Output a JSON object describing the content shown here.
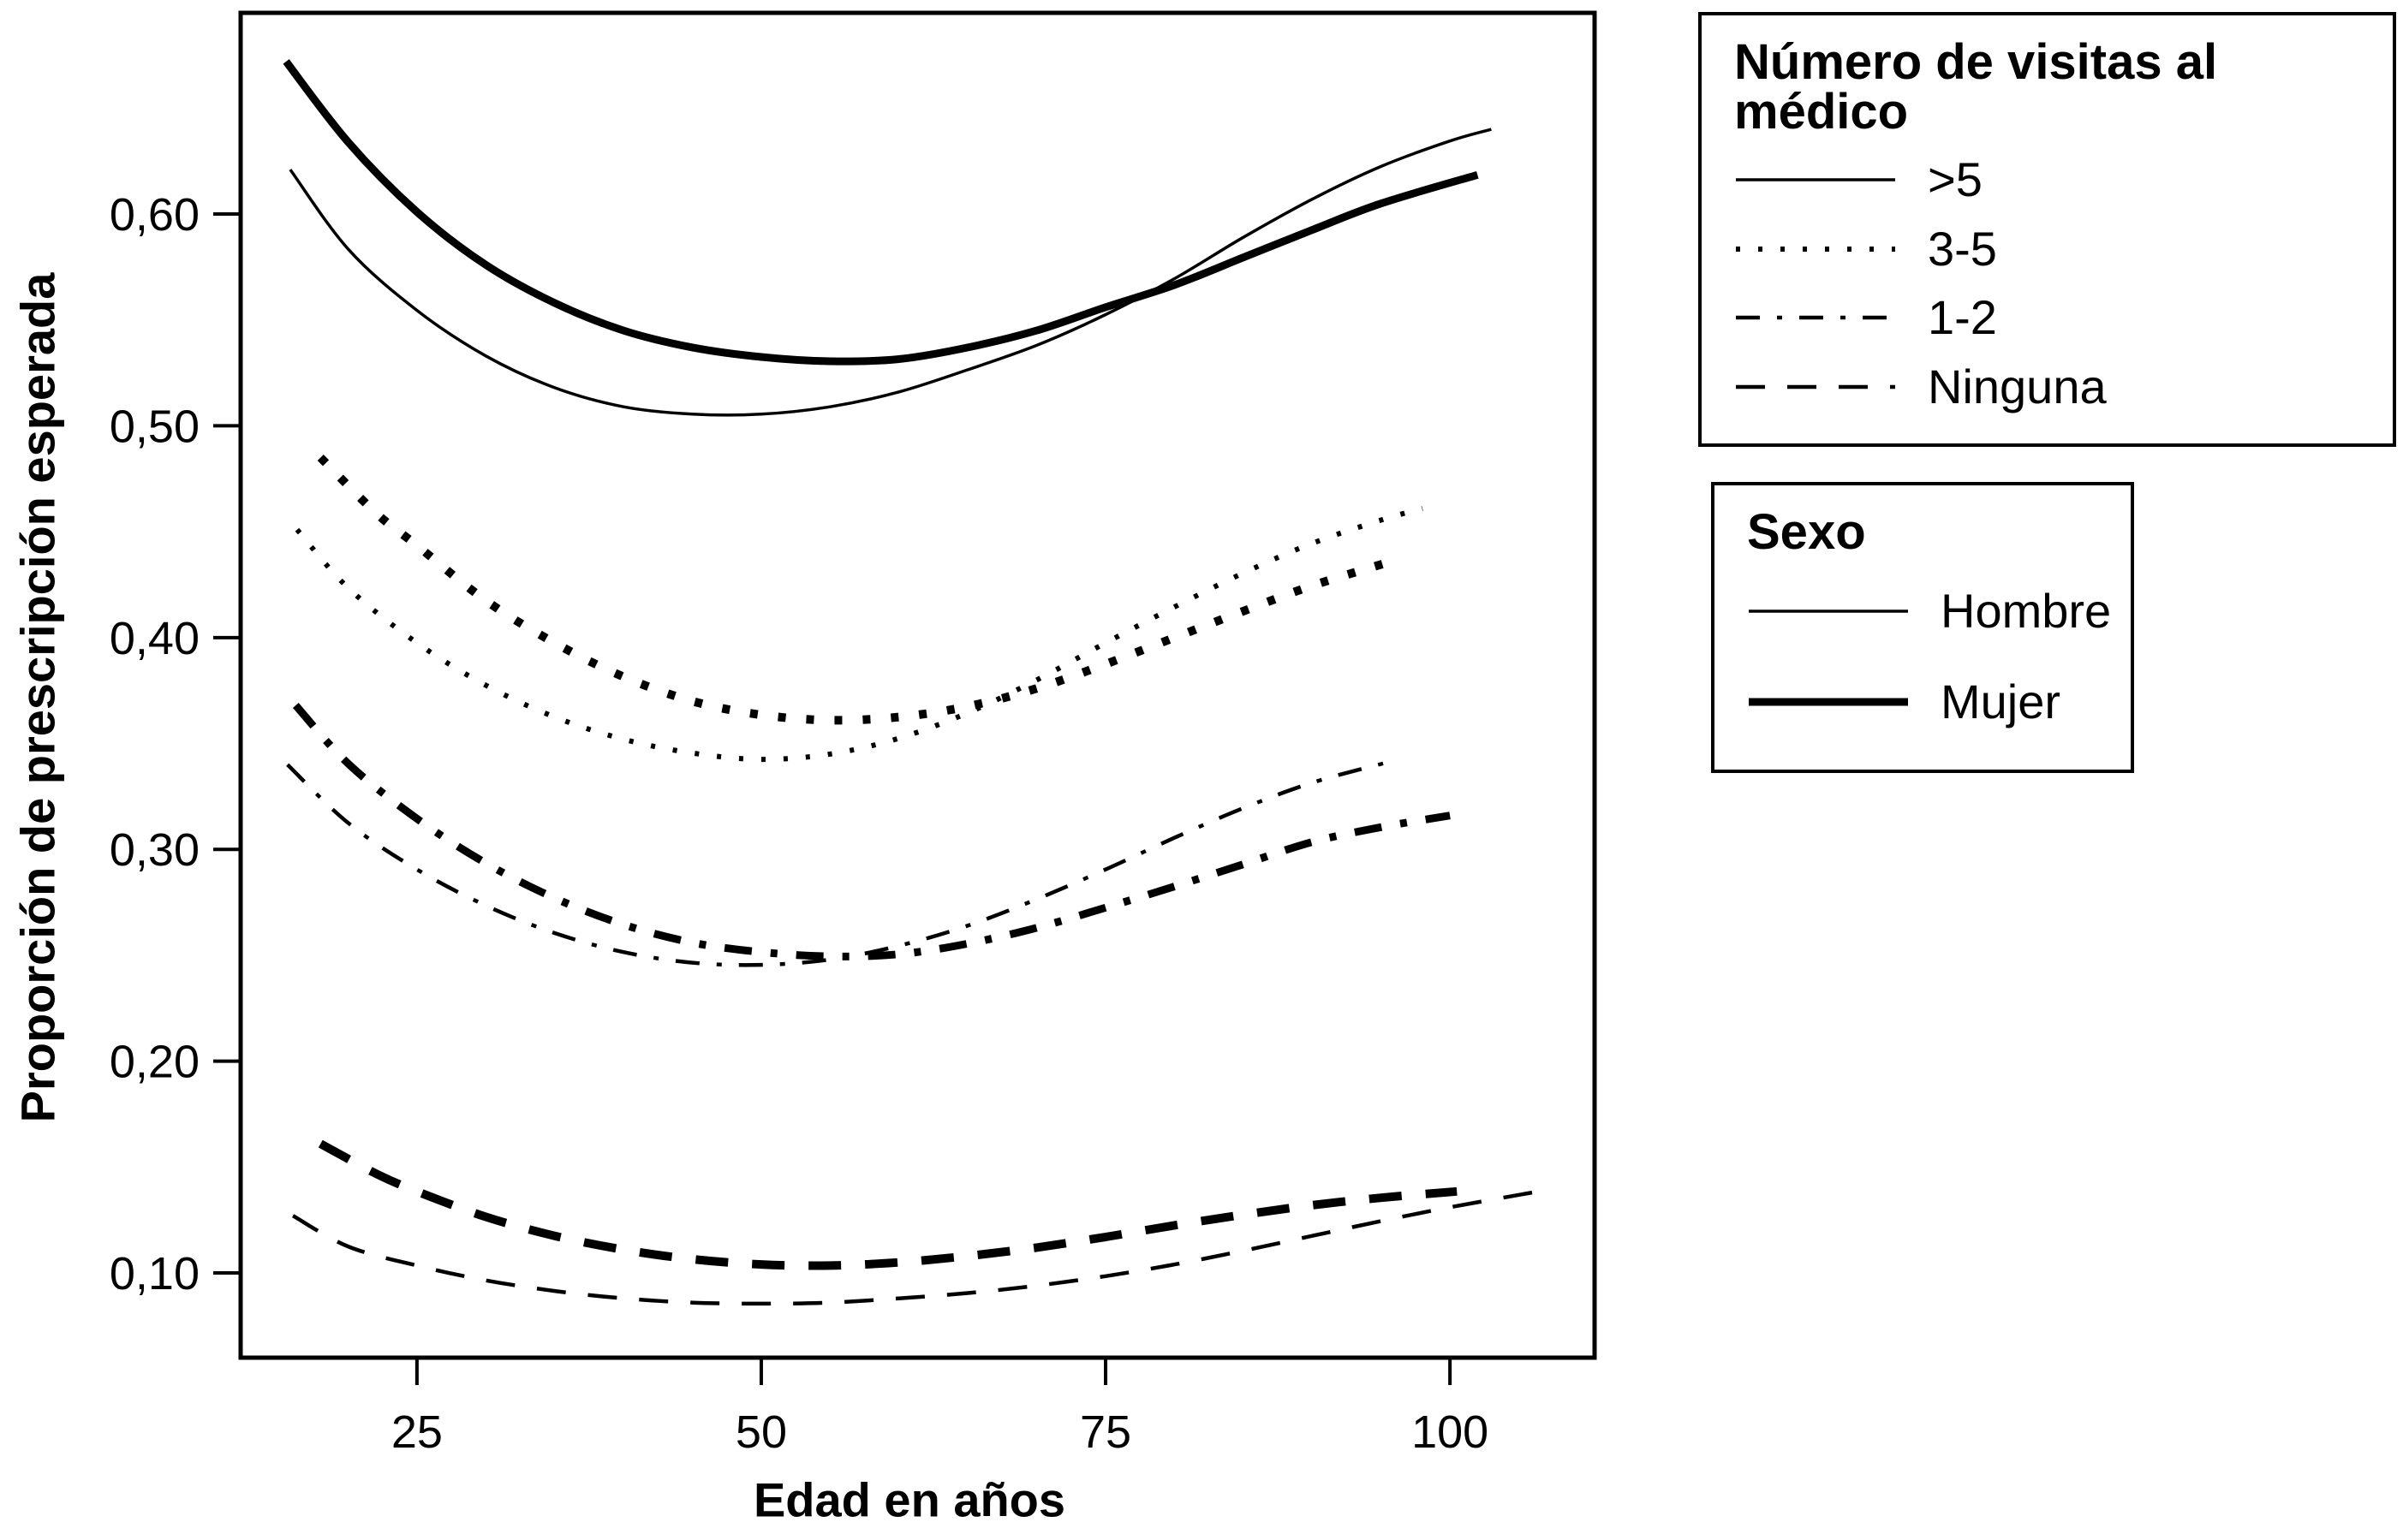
{
  "canvas": {
    "background": "#ffffff",
    "line_color": "#000000"
  },
  "chart_data": {
    "type": "line",
    "title": "",
    "xlabel": "Edad en años",
    "ylabel": "Proporción de prescripción esperada",
    "xlim": [
      12.2,
      110.5
    ],
    "ylim": [
      0.06,
      0.695
    ],
    "grid": false,
    "x_ticks": [
      {
        "value": 25,
        "label": "25"
      },
      {
        "value": 50,
        "label": "50"
      },
      {
        "value": 75,
        "label": "75"
      },
      {
        "value": 100,
        "label": "100"
      }
    ],
    "y_ticks": [
      {
        "value": 0.1,
        "label": "0,10"
      },
      {
        "value": 0.2,
        "label": "0,20"
      },
      {
        "value": 0.3,
        "label": "0,30"
      },
      {
        "value": 0.4,
        "label": "0,40"
      },
      {
        "value": 0.5,
        "label": "0,50"
      },
      {
        "value": 0.6,
        "label": "0,60"
      }
    ],
    "legends": [
      {
        "title": "Número de visitas al médico",
        "position": "top-right",
        "items": [
          {
            "label": ">5",
            "pattern": "solid",
            "weight": "thin"
          },
          {
            "label": "3-5",
            "pattern": "dotted",
            "weight": "thin"
          },
          {
            "label": "1-2",
            "pattern": "dashdot",
            "weight": "thin"
          },
          {
            "label": "Ninguna",
            "pattern": "dashed",
            "weight": "thin"
          }
        ]
      },
      {
        "title": "Sexo",
        "position": "right",
        "items": [
          {
            "label": "Hombre",
            "pattern": "solid",
            "weight": "thin"
          },
          {
            "label": "Mujer",
            "pattern": "solid",
            "weight": "thick"
          }
        ]
      }
    ],
    "series": [
      {
        "name": "Mujer, >5 visitas",
        "sex": "Mujer",
        "visits": ">5",
        "pattern": "solid",
        "weight": "thick",
        "points": [
          [
            15.5,
            0.672
          ],
          [
            20,
            0.634
          ],
          [
            25,
            0.601
          ],
          [
            30,
            0.576
          ],
          [
            35,
            0.558
          ],
          [
            40,
            0.545
          ],
          [
            45,
            0.537
          ],
          [
            50,
            0.5325
          ],
          [
            55,
            0.5305
          ],
          [
            60,
            0.5315
          ],
          [
            65,
            0.537
          ],
          [
            70,
            0.545
          ],
          [
            75,
            0.556
          ],
          [
            80,
            0.5665
          ],
          [
            85,
            0.5795
          ],
          [
            90,
            0.5925
          ],
          [
            95,
            0.605
          ],
          [
            102,
            0.6185
          ]
        ]
      },
      {
        "name": "Hombre, >5 visitas",
        "sex": "Hombre",
        "visits": ">5",
        "pattern": "solid",
        "weight": "thin",
        "points": [
          [
            15.8,
            0.621
          ],
          [
            20,
            0.5835
          ],
          [
            25,
            0.5545
          ],
          [
            30,
            0.533
          ],
          [
            35,
            0.518
          ],
          [
            40,
            0.509
          ],
          [
            45,
            0.5055
          ],
          [
            50,
            0.5055
          ],
          [
            55,
            0.509
          ],
          [
            60,
            0.516
          ],
          [
            65,
            0.5265
          ],
          [
            70,
            0.538
          ],
          [
            75,
            0.5525
          ],
          [
            80,
            0.5695
          ],
          [
            85,
            0.589
          ],
          [
            90,
            0.607
          ],
          [
            95,
            0.6225
          ],
          [
            100,
            0.6345
          ],
          [
            103,
            0.64
          ]
        ]
      },
      {
        "name": "Mujer, 3-5 visitas",
        "sex": "Mujer",
        "visits": "3-5",
        "pattern": "dotted",
        "weight": "thick",
        "points": [
          [
            18,
            0.485
          ],
          [
            22,
            0.459
          ],
          [
            25,
            0.4435
          ],
          [
            30,
            0.4175
          ],
          [
            35,
            0.3975
          ],
          [
            40,
            0.3815
          ],
          [
            45,
            0.37
          ],
          [
            50,
            0.3635
          ],
          [
            55,
            0.361
          ],
          [
            60,
            0.3625
          ],
          [
            65,
            0.3675
          ],
          [
            70,
            0.376
          ],
          [
            75,
            0.3875
          ],
          [
            80,
            0.4
          ],
          [
            85,
            0.4125
          ],
          [
            90,
            0.4245
          ],
          [
            96,
            0.4365
          ]
        ]
      },
      {
        "name": "Hombre, 3-5 visitas",
        "sex": "Hombre",
        "visits": "3-5",
        "pattern": "dotted",
        "weight": "thin",
        "points": [
          [
            16.3,
            0.451
          ],
          [
            20,
            0.4235
          ],
          [
            25,
            0.3975
          ],
          [
            30,
            0.3775
          ],
          [
            35,
            0.3625
          ],
          [
            40,
            0.352
          ],
          [
            45,
            0.3455
          ],
          [
            50,
            0.3425
          ],
          [
            55,
            0.345
          ],
          [
            60,
            0.3525
          ],
          [
            65,
            0.3645
          ],
          [
            70,
            0.38
          ],
          [
            75,
            0.3975
          ],
          [
            80,
            0.4145
          ],
          [
            85,
            0.4305
          ],
          [
            90,
            0.4445
          ],
          [
            95,
            0.4555
          ],
          [
            98,
            0.461
          ]
        ]
      },
      {
        "name": "Mujer, 1-2 visitas",
        "sex": "Mujer",
        "visits": "1-2",
        "pattern": "dashdot",
        "weight": "thick",
        "points": [
          [
            16.2,
            0.368
          ],
          [
            20,
            0.3405
          ],
          [
            25,
            0.3145
          ],
          [
            30,
            0.2935
          ],
          [
            35,
            0.277
          ],
          [
            40,
            0.2645
          ],
          [
            45,
            0.256
          ],
          [
            50,
            0.2515
          ],
          [
            55,
            0.2495
          ],
          [
            60,
            0.2505
          ],
          [
            65,
            0.2555
          ],
          [
            70,
            0.263
          ],
          [
            75,
            0.2725
          ],
          [
            80,
            0.2825
          ],
          [
            85,
            0.293
          ],
          [
            90,
            0.3035
          ],
          [
            95,
            0.3105
          ],
          [
            100,
            0.316
          ]
        ]
      },
      {
        "name": "Hombre, 1-2 visitas",
        "sex": "Hombre",
        "visits": "1-2",
        "pattern": "dashdot",
        "weight": "thin",
        "points": [
          [
            15.6,
            0.34
          ],
          [
            20,
            0.3125
          ],
          [
            25,
            0.2905
          ],
          [
            30,
            0.2735
          ],
          [
            35,
            0.2605
          ],
          [
            40,
            0.2515
          ],
          [
            45,
            0.2465
          ],
          [
            50,
            0.2455
          ],
          [
            55,
            0.248
          ],
          [
            60,
            0.2545
          ],
          [
            65,
            0.264
          ],
          [
            70,
            0.2765
          ],
          [
            75,
            0.2905
          ],
          [
            80,
            0.3055
          ],
          [
            85,
            0.3195
          ],
          [
            90,
            0.3315
          ],
          [
            95.4,
            0.341
          ]
        ]
      },
      {
        "name": "Mujer, ninguna visita",
        "sex": "Mujer",
        "visits": "Ninguna",
        "pattern": "dashed",
        "weight": "thick",
        "points": [
          [
            18,
            0.161
          ],
          [
            22,
            0.147
          ],
          [
            25,
            0.1385
          ],
          [
            30,
            0.1265
          ],
          [
            35,
            0.1175
          ],
          [
            40,
            0.111
          ],
          [
            45,
            0.1065
          ],
          [
            50,
            0.104
          ],
          [
            55,
            0.1035
          ],
          [
            60,
            0.105
          ],
          [
            65,
            0.108
          ],
          [
            70,
            0.112
          ],
          [
            75,
            0.117
          ],
          [
            80,
            0.1225
          ],
          [
            85,
            0.1275
          ],
          [
            90,
            0.132
          ],
          [
            95,
            0.1355
          ],
          [
            100.5,
            0.1385
          ]
        ]
      },
      {
        "name": "Hombre, ninguna visita",
        "sex": "Hombre",
        "visits": "Ninguna",
        "pattern": "dashed",
        "weight": "thin",
        "points": [
          [
            16,
            0.127
          ],
          [
            20,
            0.1125
          ],
          [
            25,
            0.1035
          ],
          [
            30,
            0.0965
          ],
          [
            35,
            0.0915
          ],
          [
            40,
            0.088
          ],
          [
            45,
            0.086
          ],
          [
            50,
            0.0855
          ],
          [
            55,
            0.086
          ],
          [
            60,
            0.088
          ],
          [
            65,
            0.0905
          ],
          [
            70,
            0.094
          ],
          [
            75,
            0.0985
          ],
          [
            80,
            0.104
          ],
          [
            85,
            0.1105
          ],
          [
            90,
            0.1175
          ],
          [
            95,
            0.1245
          ],
          [
            100,
            0.131
          ],
          [
            106,
            0.138
          ]
        ]
      }
    ]
  }
}
